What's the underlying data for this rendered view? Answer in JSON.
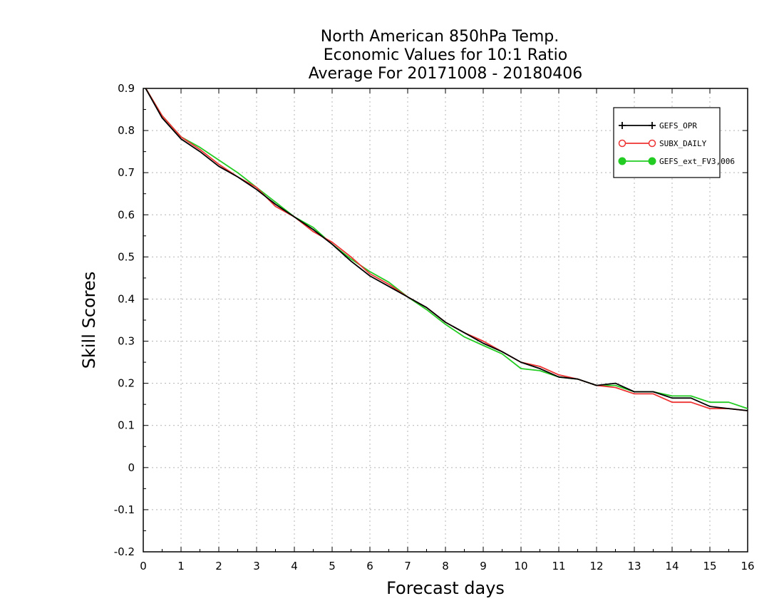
{
  "chart_data": {
    "type": "line",
    "title_lines": [
      "North American 850hPa Temp.",
      "Economic Values for 10:1 Ratio",
      "Average For 20171008 - 20180406"
    ],
    "xlabel": "Forecast days",
    "ylabel": "Skill Scores",
    "xlim": [
      0,
      16
    ],
    "ylim": [
      -0.2,
      0.9
    ],
    "x_ticks": [
      0,
      1,
      2,
      3,
      4,
      5,
      6,
      7,
      8,
      9,
      10,
      11,
      12,
      13,
      14,
      15,
      16
    ],
    "y_ticks": [
      -0.2,
      -0.1,
      0,
      0.1,
      0.2,
      0.3,
      0.4,
      0.5,
      0.6,
      0.7,
      0.8,
      0.9
    ],
    "grid": true,
    "legend_position": "top-right",
    "x": [
      0,
      0.5,
      1,
      1.5,
      2,
      2.5,
      3,
      3.5,
      4,
      4.5,
      5,
      5.5,
      6,
      6.5,
      7,
      7.5,
      8,
      8.5,
      9,
      9.5,
      10,
      10.5,
      11,
      11.5,
      12,
      12.5,
      13,
      13.5,
      14,
      14.5,
      15,
      15.5,
      16
    ],
    "series": [
      {
        "name": "GEFS_OPR",
        "color": "#000000",
        "marker": "plus",
        "values": [
          0.91,
          0.83,
          0.78,
          0.75,
          0.715,
          0.69,
          0.66,
          0.625,
          0.595,
          0.565,
          0.53,
          0.49,
          0.455,
          0.43,
          0.405,
          0.38,
          0.345,
          0.32,
          0.295,
          0.275,
          0.25,
          0.235,
          0.215,
          0.21,
          0.195,
          0.2,
          0.18,
          0.18,
          0.165,
          0.165,
          0.145,
          0.14,
          0.135
        ]
      },
      {
        "name": "SUBX_DAILY",
        "color": "#ee3333",
        "marker": "circle-open",
        "values": [
          0.91,
          0.835,
          0.785,
          0.755,
          0.72,
          0.69,
          0.665,
          0.62,
          0.595,
          0.56,
          0.535,
          0.5,
          0.46,
          0.435,
          0.405,
          0.38,
          0.345,
          0.32,
          0.3,
          0.275,
          0.25,
          0.24,
          0.22,
          0.21,
          0.195,
          0.19,
          0.175,
          0.175,
          0.155,
          0.155,
          0.14,
          0.14,
          0.135
        ]
      },
      {
        "name": "GEFS_ext_FV3,006",
        "color": "#22cc22",
        "marker": "circle-filled",
        "values": [
          0.91,
          0.835,
          0.785,
          0.76,
          0.73,
          0.7,
          0.665,
          0.63,
          0.595,
          0.57,
          0.53,
          0.495,
          0.465,
          0.44,
          0.405,
          0.375,
          0.34,
          0.31,
          0.29,
          0.27,
          0.235,
          0.23,
          0.215,
          0.21,
          0.195,
          0.195,
          0.18,
          0.18,
          0.17,
          0.17,
          0.155,
          0.155,
          0.14
        ]
      }
    ]
  }
}
